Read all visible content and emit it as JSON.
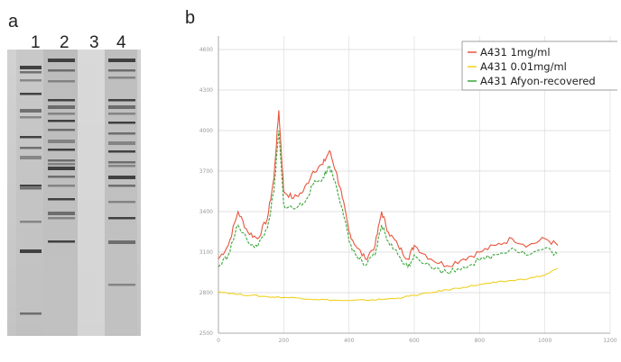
{
  "panel_a": {
    "label": "a",
    "lanes": [
      "1",
      "2",
      "3",
      "4"
    ]
  },
  "panel_b": {
    "label": "b"
  },
  "colors": {
    "series_1mg": "#e8553d",
    "series_001mg": "#f0d020",
    "series_afyon": "#3aa63a",
    "grid": "#d8d8d8",
    "gel_bg": "#c9c9c9"
  },
  "chart_data": {
    "type": "line",
    "title": "",
    "xlabel": "",
    "ylabel": "",
    "xlim": [
      0,
      1200
    ],
    "ylim": [
      2500,
      4700
    ],
    "grid": true,
    "legend_position": "top-right",
    "series": [
      {
        "name": "A431 1mg/ml",
        "x": [
          0,
          30,
          60,
          90,
          120,
          150,
          170,
          185,
          200,
          230,
          260,
          290,
          320,
          340,
          360,
          380,
          400,
          420,
          450,
          480,
          500,
          520,
          550,
          580,
          600,
          650,
          700,
          750,
          800,
          850,
          900,
          950,
          1000,
          1040
        ],
        "y": [
          3050,
          3150,
          3400,
          3250,
          3200,
          3350,
          3650,
          4150,
          3550,
          3500,
          3550,
          3700,
          3750,
          3850,
          3700,
          3500,
          3250,
          3150,
          3050,
          3150,
          3400,
          3250,
          3150,
          3050,
          3150,
          3050,
          3000,
          3050,
          3100,
          3150,
          3200,
          3150,
          3200,
          3150
        ]
      },
      {
        "name": "A431 0.01mg/ml",
        "x": [
          0,
          50,
          100,
          150,
          200,
          250,
          300,
          350,
          400,
          450,
          500,
          550,
          600,
          650,
          700,
          750,
          800,
          850,
          900,
          950,
          1000,
          1040
        ],
        "y": [
          2810,
          2790,
          2780,
          2770,
          2765,
          2760,
          2750,
          2745,
          2740,
          2745,
          2750,
          2760,
          2780,
          2800,
          2820,
          2840,
          2860,
          2875,
          2890,
          2905,
          2930,
          2980
        ]
      },
      {
        "name": "A431 Afyon-recovered",
        "x": [
          0,
          30,
          60,
          90,
          120,
          150,
          170,
          185,
          200,
          230,
          260,
          290,
          320,
          340,
          360,
          380,
          400,
          420,
          450,
          480,
          500,
          520,
          550,
          580,
          600,
          650,
          700,
          750,
          800,
          850,
          900,
          950,
          1000,
          1040
        ],
        "y": [
          2990,
          3080,
          3300,
          3180,
          3140,
          3280,
          3550,
          4000,
          3450,
          3420,
          3460,
          3600,
          3650,
          3740,
          3600,
          3420,
          3180,
          3080,
          3000,
          3080,
          3300,
          3180,
          3080,
          2990,
          3080,
          2990,
          2950,
          2990,
          3040,
          3080,
          3130,
          3080,
          3130,
          3080
        ]
      }
    ]
  }
}
